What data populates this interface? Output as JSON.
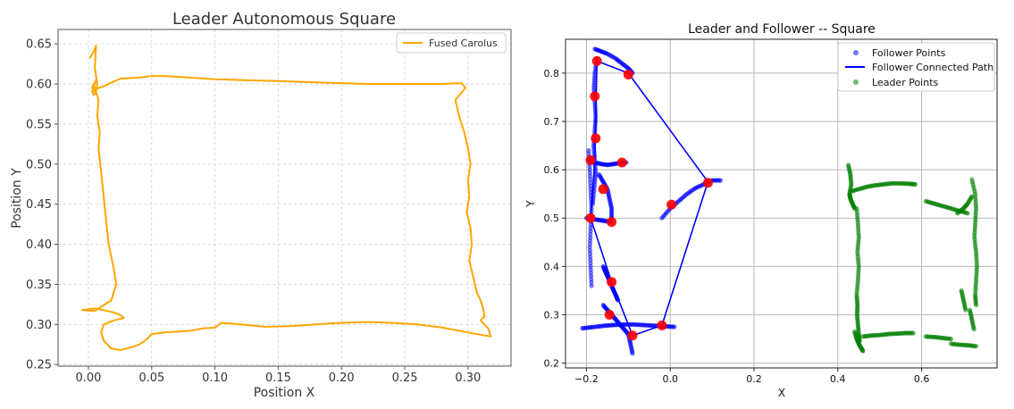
{
  "chart_data": [
    {
      "type": "line",
      "title": "Leader Autonomous Square",
      "xlabel": "Position X",
      "ylabel": "Position Y",
      "xlim": [
        -0.024,
        0.334
      ],
      "ylim": [
        0.248,
        0.668
      ],
      "xticks": [
        "0.00",
        "0.05",
        "0.10",
        "0.15",
        "0.20",
        "0.25",
        "0.30"
      ],
      "yticks": [
        "0.25",
        "0.30",
        "0.35",
        "0.40",
        "0.45",
        "0.50",
        "0.55",
        "0.60",
        "0.65"
      ],
      "grid": true,
      "legend_position": "top-right",
      "colors": {
        "path": "#ffa500"
      },
      "series": [
        {
          "name": "Fused Carolus",
          "x": [
            0.001,
            0.004,
            0.006,
            0.005,
            0.007,
            0.006,
            0.004,
            0.003,
            0.006,
            0.003,
            0.008,
            0.012,
            0.016,
            0.02,
            0.026,
            0.03,
            0.04,
            0.05,
            0.06,
            0.08,
            0.1,
            0.12,
            0.14,
            0.16,
            0.18,
            0.2,
            0.22,
            0.24,
            0.26,
            0.28,
            0.295,
            0.298,
            0.29,
            0.293,
            0.297,
            0.3,
            0.302,
            0.3,
            0.301,
            0.299,
            0.302,
            0.303,
            0.301,
            0.304,
            0.307,
            0.31,
            0.312,
            0.313,
            0.31,
            0.316,
            0.318,
            0.3,
            0.28,
            0.26,
            0.24,
            0.22,
            0.2,
            0.18,
            0.16,
            0.14,
            0.12,
            0.105,
            0.1,
            0.09,
            0.08,
            0.06,
            0.05,
            0.045,
            0.04,
            0.035,
            0.03,
            0.025,
            0.018,
            0.012,
            0.01,
            0.012,
            0.02,
            0.028,
            0.025,
            0.02,
            0.012,
            0.005,
            -0.005,
            0.005,
            0.018,
            0.022,
            0.02,
            0.016,
            0.014,
            0.012,
            0.01,
            0.008,
            0.009,
            0.007,
            0.008,
            0.006,
            0.005,
            0.004
          ],
          "y": [
            0.632,
            0.64,
            0.648,
            0.62,
            0.6,
            0.59,
            0.586,
            0.596,
            0.605,
            0.59,
            0.595,
            0.597,
            0.6,
            0.603,
            0.607,
            0.607,
            0.608,
            0.61,
            0.61,
            0.608,
            0.606,
            0.605,
            0.604,
            0.603,
            0.602,
            0.601,
            0.6,
            0.6,
            0.6,
            0.6,
            0.601,
            0.595,
            0.58,
            0.56,
            0.54,
            0.52,
            0.5,
            0.48,
            0.46,
            0.44,
            0.42,
            0.4,
            0.38,
            0.36,
            0.34,
            0.33,
            0.32,
            0.31,
            0.305,
            0.295,
            0.285,
            0.29,
            0.296,
            0.3,
            0.302,
            0.303,
            0.302,
            0.3,
            0.298,
            0.297,
            0.3,
            0.302,
            0.296,
            0.295,
            0.292,
            0.29,
            0.288,
            0.28,
            0.275,
            0.272,
            0.27,
            0.268,
            0.27,
            0.28,
            0.29,
            0.3,
            0.305,
            0.308,
            0.312,
            0.315,
            0.318,
            0.32,
            0.318,
            0.317,
            0.33,
            0.35,
            0.37,
            0.4,
            0.43,
            0.46,
            0.49,
            0.52,
            0.54,
            0.56,
            0.58,
            0.59,
            0.595,
            0.6
          ]
        }
      ]
    },
    {
      "type": "scatter",
      "title": "Leader and Follower -- Square",
      "xlabel": "X",
      "ylabel": "Y",
      "xlim": [
        -0.25,
        0.78
      ],
      "ylim": [
        0.19,
        0.87
      ],
      "xticks": [
        "−0.2",
        "0.0",
        "0.2",
        "0.4",
        "0.6"
      ],
      "yticks": [
        "0.2",
        "0.3",
        "0.4",
        "0.5",
        "0.6",
        "0.7",
        "0.8"
      ],
      "grid": true,
      "legend_position": "top-right",
      "colors": {
        "follower_points": "#0000ff",
        "follower_path": "#0000ff",
        "leader_points": "#008000",
        "waypoints": "#ff0000"
      },
      "series": [
        {
          "name": "Follower Points",
          "type": "scatter",
          "segments": [
            {
              "x": [
                -0.18,
                -0.165,
                -0.15,
                -0.13,
                -0.115,
                -0.1,
                -0.09
              ],
              "y": [
                0.85,
                0.845,
                0.84,
                0.83,
                0.82,
                0.81,
                0.8
              ]
            },
            {
              "x": [
                -0.175,
                -0.18,
                -0.182,
                -0.18,
                -0.178,
                -0.18,
                -0.183,
                -0.18,
                -0.178,
                -0.182,
                -0.185
              ],
              "y": [
                0.83,
                0.8,
                0.77,
                0.74,
                0.71,
                0.68,
                0.65,
                0.62,
                0.59,
                0.56,
                0.53
              ]
            },
            {
              "x": [
                -0.195,
                -0.192,
                -0.19,
                -0.188,
                -0.19,
                -0.192,
                -0.19,
                -0.188
              ],
              "y": [
                0.64,
                0.6,
                0.56,
                0.52,
                0.48,
                0.44,
                0.4,
                0.36
              ]
            },
            {
              "x": [
                -0.195,
                -0.18,
                -0.165,
                -0.15,
                -0.135,
                -0.12,
                -0.105
              ],
              "y": [
                0.62,
                0.615,
                0.612,
                0.61,
                0.612,
                0.614,
                0.615
              ]
            },
            {
              "x": [
                -0.2,
                -0.185,
                -0.17,
                -0.155,
                -0.14
              ],
              "y": [
                0.5,
                0.498,
                0.496,
                0.494,
                0.492
              ]
            },
            {
              "x": [
                -0.17,
                -0.16,
                -0.15,
                -0.145,
                -0.14,
                -0.14
              ],
              "y": [
                0.59,
                0.575,
                0.56,
                0.54,
                0.52,
                0.5
              ]
            },
            {
              "x": [
                -0.16,
                -0.155,
                -0.15,
                -0.145,
                -0.14,
                -0.135,
                -0.13,
                -0.125
              ],
              "y": [
                0.4,
                0.39,
                0.38,
                0.37,
                0.36,
                0.35,
                0.34,
                0.33
              ]
            },
            {
              "x": [
                -0.21,
                -0.19,
                -0.17,
                -0.15,
                -0.13,
                -0.11,
                -0.09,
                -0.07,
                -0.05,
                -0.03,
                -0.01,
                0.01
              ],
              "y": [
                0.272,
                0.274,
                0.276,
                0.278,
                0.279,
                0.28,
                0.28,
                0.279,
                0.278,
                0.277,
                0.276,
                0.275
              ]
            },
            {
              "x": [
                -0.16,
                -0.15,
                -0.14,
                -0.13,
                -0.12,
                -0.11,
                -0.1,
                -0.095,
                -0.09
              ],
              "y": [
                0.32,
                0.31,
                0.3,
                0.29,
                0.28,
                0.27,
                0.26,
                0.24,
                0.22
              ]
            },
            {
              "x": [
                -0.02,
                0.0,
                0.02,
                0.04,
                0.06,
                0.08,
                0.1,
                0.12
              ],
              "y": [
                0.5,
                0.52,
                0.535,
                0.55,
                0.562,
                0.57,
                0.578,
                0.578
              ]
            }
          ]
        },
        {
          "name": "Follower Connected Path",
          "type": "line",
          "x": [
            -0.175,
            -0.1,
            0.09,
            -0.02,
            -0.09,
            -0.14,
            -0.19,
            -0.18,
            -0.175
          ],
          "y": [
            0.825,
            0.8,
            0.575,
            0.278,
            0.257,
            0.368,
            0.5,
            0.62,
            0.825
          ]
        },
        {
          "name": "Leader Points",
          "type": "scatter",
          "segments": [
            {
              "x": [
                0.425,
                0.43,
                0.432,
                0.428,
                0.43,
                0.435,
                0.44
              ],
              "y": [
                0.61,
                0.59,
                0.57,
                0.55,
                0.54,
                0.53,
                0.52
              ]
            },
            {
              "x": [
                0.43,
                0.45,
                0.47,
                0.49,
                0.51,
                0.53,
                0.55,
                0.57,
                0.585
              ],
              "y": [
                0.555,
                0.56,
                0.565,
                0.568,
                0.57,
                0.572,
                0.572,
                0.571,
                0.57
              ]
            },
            {
              "x": [
                0.445,
                0.448,
                0.45,
                0.447,
                0.45,
                0.448,
                0.445,
                0.447,
                0.446,
                0.448,
                0.45,
                0.452
              ],
              "y": [
                0.52,
                0.49,
                0.46,
                0.43,
                0.4,
                0.37,
                0.34,
                0.32,
                0.3,
                0.28,
                0.26,
                0.245
              ]
            },
            {
              "x": [
                0.44,
                0.445,
                0.45,
                0.455,
                0.46
              ],
              "y": [
                0.265,
                0.25,
                0.24,
                0.232,
                0.225
              ]
            },
            {
              "x": [
                0.46,
                0.48,
                0.5,
                0.52,
                0.54,
                0.56,
                0.58
              ],
              "y": [
                0.255,
                0.257,
                0.258,
                0.26,
                0.261,
                0.262,
                0.262
              ]
            },
            {
              "x": [
                0.61,
                0.63,
                0.65,
                0.67
              ],
              "y": [
                0.255,
                0.254,
                0.252,
                0.25
              ]
            },
            {
              "x": [
                0.67,
                0.69,
                0.71,
                0.73
              ],
              "y": [
                0.24,
                0.238,
                0.237,
                0.235
              ]
            },
            {
              "x": [
                0.61,
                0.63,
                0.65,
                0.67,
                0.69,
                0.71
              ],
              "y": [
                0.535,
                0.53,
                0.525,
                0.52,
                0.515,
                0.51
              ]
            },
            {
              "x": [
                0.685,
                0.7,
                0.71,
                0.72
              ],
              "y": [
                0.51,
                0.52,
                0.53,
                0.545
              ]
            },
            {
              "x": [
                0.72,
                0.728,
                0.73,
                0.728,
                0.726,
                0.73,
                0.732,
                0.73,
                0.728,
                0.73
              ],
              "y": [
                0.58,
                0.55,
                0.52,
                0.49,
                0.46,
                0.43,
                0.4,
                0.37,
                0.34,
                0.32
              ]
            },
            {
              "x": [
                0.695,
                0.7,
                0.705
              ],
              "y": [
                0.35,
                0.33,
                0.31
              ]
            },
            {
              "x": [
                0.715,
                0.72,
                0.725
              ],
              "y": [
                0.31,
                0.29,
                0.27
              ]
            }
          ]
        },
        {
          "name": "",
          "type": "scatter",
          "x": [
            -0.175,
            -0.1,
            -0.18,
            -0.178,
            -0.19,
            -0.115,
            -0.16,
            -0.19,
            -0.14,
            -0.14,
            -0.145,
            -0.09,
            -0.02,
            0.003,
            0.09
          ],
          "y": [
            0.825,
            0.797,
            0.752,
            0.665,
            0.62,
            0.615,
            0.56,
            0.5,
            0.492,
            0.368,
            0.3,
            0.257,
            0.278,
            0.528,
            0.573
          ]
        }
      ]
    }
  ]
}
